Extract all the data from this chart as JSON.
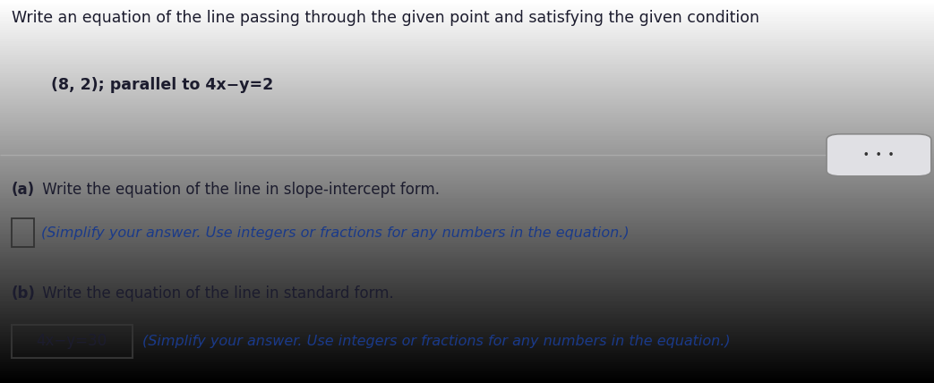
{
  "background_color": "#d4d4d8",
  "background_top": "#e8e8ec",
  "background_bottom": "#c8c8cc",
  "title_text": "Write an equation of the line passing through the given point and satisfying the given condition",
  "subtitle_text": "(8, 2); parallel to 4x−y=2",
  "part_a_label_bold": "(a)",
  "part_a_label_rest": " Write the equation of the line in slope-intercept form.",
  "part_a_instruction": "(Simplify your answer. Use integers or fractions for any numbers in the equation.)",
  "part_b_label_bold": "(b)",
  "part_b_label_rest": " Write the equation of the line in standard form.",
  "part_b_box_text": "4x−y=30",
  "part_b_instruction": "(Simplify your answer. Use integers or fractions for any numbers in the equation.)",
  "dots_text": "•  •  •",
  "text_color_dark": "#1c1c2e",
  "text_color_blue": "#1a3a8a",
  "box_border_color": "#333333",
  "line_color": "#aaaaaa",
  "dots_border_color": "#888888",
  "dots_bg_color": "#e0e0e4",
  "title_fontsize": 12.5,
  "subtitle_fontsize": 12.5,
  "label_fontsize": 12.0,
  "instruction_fontsize": 11.5,
  "fig_width": 10.43,
  "fig_height": 4.28
}
